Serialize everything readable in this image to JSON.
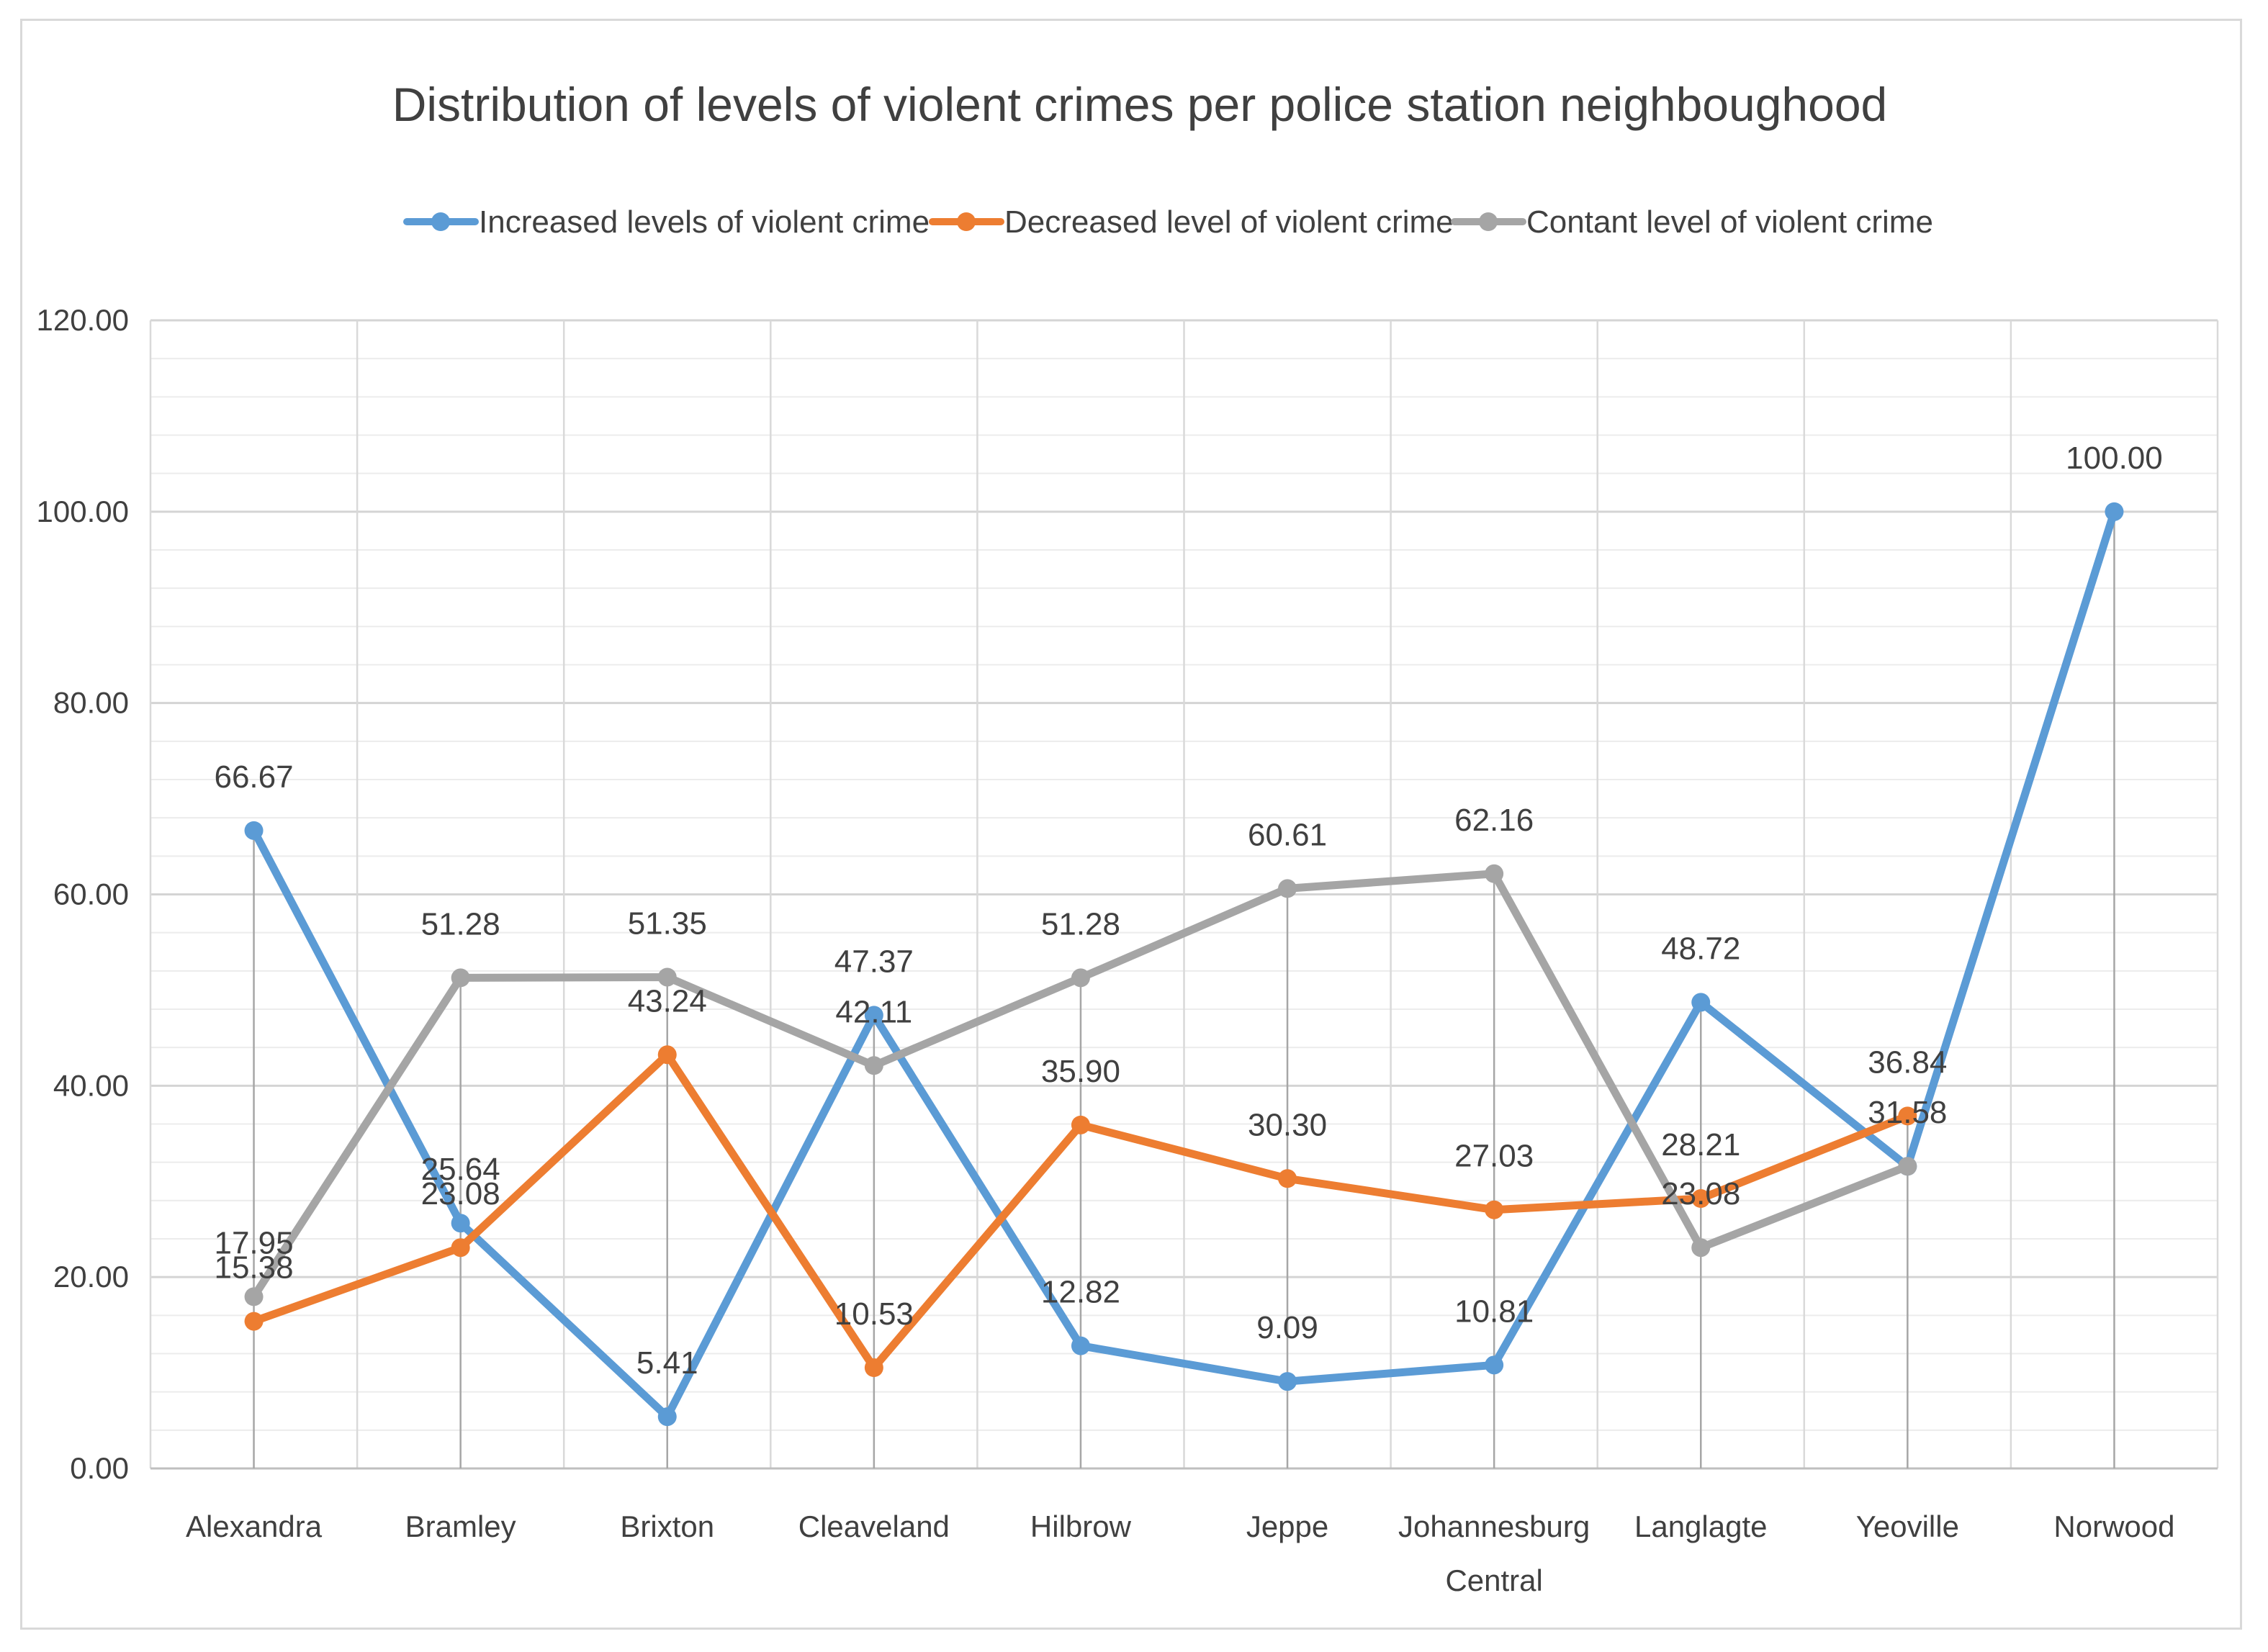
{
  "chart_data": {
    "type": "line",
    "title": "Distribution of levels of violent crimes per police station neighboughood",
    "categories": [
      "Alexandra",
      "Bramley",
      "Brixton",
      "Cleaveland",
      "Hilbrow",
      "Jeppe",
      "Johannesburg Central",
      "Langlagte",
      "Yeoville",
      "Norwood"
    ],
    "series": [
      {
        "name": "Increased levels of violent crime",
        "color": "#5b9bd5",
        "values": [
          66.67,
          25.64,
          5.41,
          47.37,
          12.82,
          9.09,
          10.81,
          48.72,
          31.58,
          100.0
        ],
        "labels": [
          "66.67",
          "25.64",
          "5.41",
          "47.37",
          "12.82",
          "9.09",
          "10.81",
          "48.72",
          "31.58",
          "100.00"
        ]
      },
      {
        "name": "Decreased level of violent crime",
        "color": "#ed7d31",
        "values": [
          15.38,
          23.08,
          43.24,
          10.53,
          35.9,
          30.3,
          27.03,
          28.21,
          36.84,
          null
        ],
        "labels": [
          "15.38",
          "23.08",
          "43.24",
          "10.53",
          "35.90",
          "30.30",
          "27.03",
          "28.21",
          "36.84",
          null
        ]
      },
      {
        "name": "Contant level of violent crime",
        "color": "#a5a5a5",
        "values": [
          17.95,
          51.28,
          51.35,
          42.11,
          51.28,
          60.61,
          62.16,
          23.08,
          31.58,
          null
        ],
        "labels": [
          "17.95",
          "51.28",
          "51.35",
          "42.11",
          "51.28",
          "60.61",
          "62.16",
          "23.08",
          null,
          null
        ]
      }
    ],
    "y_ticks": [
      "0.00",
      "20.00",
      "40.00",
      "60.00",
      "80.00",
      "100.00",
      "120.00"
    ],
    "ylim": [
      0,
      120
    ],
    "xlabel": "",
    "ylabel": "",
    "grid": true,
    "legend_position": "top"
  }
}
